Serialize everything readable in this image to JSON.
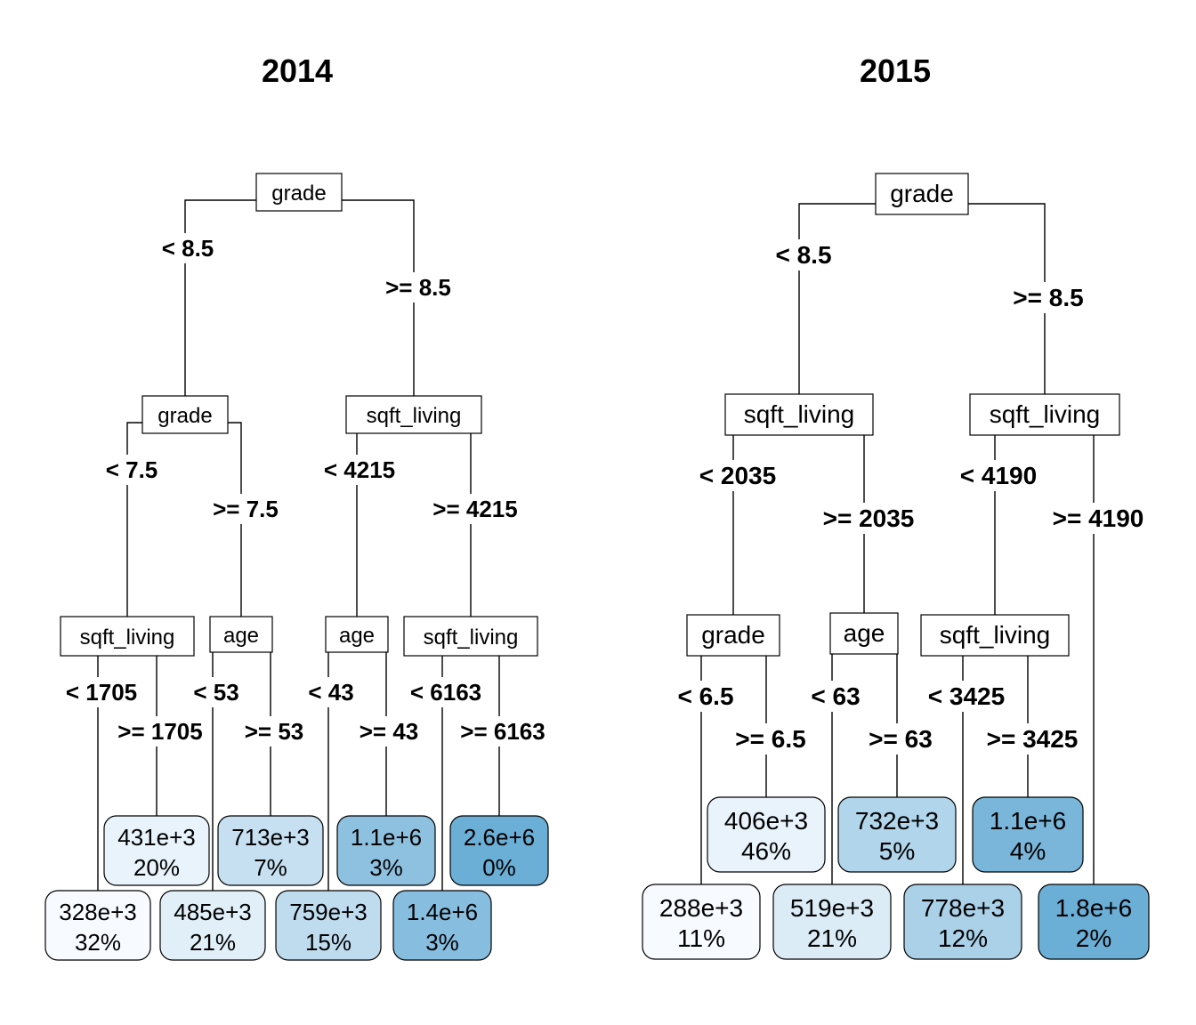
{
  "trees": [
    {
      "id": "t2014",
      "title": "2014",
      "colors": {
        "shade_low": "#f7fbff",
        "shade_high": "#6baed6"
      },
      "nodes": [
        {
          "id": "n1",
          "var": "grade"
        },
        {
          "id": "n2",
          "var": "grade",
          "parent": "n1",
          "edge": "< 8.5"
        },
        {
          "id": "n3",
          "var": "sqft_living",
          "parent": "n1",
          "edge": ">= 8.5"
        },
        {
          "id": "n4",
          "var": "sqft_living",
          "parent": "n2",
          "edge": "< 7.5"
        },
        {
          "id": "n5",
          "var": "age",
          "parent": "n2",
          "edge": ">= 7.5"
        },
        {
          "id": "n6",
          "var": "age",
          "parent": "n3",
          "edge": "< 4215"
        },
        {
          "id": "n7",
          "var": "sqft_living",
          "parent": "n3",
          "edge": ">= 4215"
        },
        {
          "id": "l1",
          "leaf": true,
          "value": "328e+3",
          "pct": "32%",
          "shade": 0.0,
          "parent": "n4",
          "edge": "< 1705"
        },
        {
          "id": "l2",
          "leaf": true,
          "value": "431e+3",
          "pct": "20%",
          "shade": 0.1,
          "parent": "n4",
          "edge": ">= 1705"
        },
        {
          "id": "l3",
          "leaf": true,
          "value": "485e+3",
          "pct": "21%",
          "shade": 0.16,
          "parent": "n5",
          "edge": "< 53"
        },
        {
          "id": "l4",
          "leaf": true,
          "value": "713e+3",
          "pct": "7%",
          "shade": 0.35,
          "parent": "n5",
          "edge": ">= 53"
        },
        {
          "id": "l5",
          "leaf": true,
          "value": "759e+3",
          "pct": "15%",
          "shade": 0.4,
          "parent": "n6",
          "edge": "< 43"
        },
        {
          "id": "l6",
          "leaf": true,
          "value": "1.1e+6",
          "pct": "3%",
          "shade": 0.75,
          "parent": "n6",
          "edge": ">= 43"
        },
        {
          "id": "l7",
          "leaf": true,
          "value": "1.4e+6",
          "pct": "3%",
          "shade": 0.8,
          "parent": "n7",
          "edge": "< 6163"
        },
        {
          "id": "l8",
          "leaf": true,
          "value": "2.6e+6",
          "pct": "0%",
          "shade": 1.0,
          "parent": "n7",
          "edge": ">= 6163"
        }
      ]
    },
    {
      "id": "t2015",
      "title": "2015",
      "colors": {
        "shade_low": "#f7fbff",
        "shade_high": "#6baed6"
      },
      "nodes": [
        {
          "id": "n1",
          "var": "grade"
        },
        {
          "id": "n2",
          "var": "sqft_living",
          "parent": "n1",
          "edge": "< 8.5"
        },
        {
          "id": "n3",
          "var": "sqft_living",
          "parent": "n1",
          "edge": ">= 8.5"
        },
        {
          "id": "n4",
          "var": "grade",
          "parent": "n2",
          "edge": "< 2035"
        },
        {
          "id": "n5",
          "var": "age",
          "parent": "n2",
          "edge": ">= 2035"
        },
        {
          "id": "n6",
          "var": "sqft_living",
          "parent": "n3",
          "edge": "< 4190"
        },
        {
          "id": "l8",
          "leaf": true,
          "value": "1.8e+6",
          "pct": "2%",
          "shade": 1.0,
          "parent": "n3",
          "edge": ">= 4190"
        },
        {
          "id": "l1",
          "leaf": true,
          "value": "288e+3",
          "pct": "11%",
          "shade": 0.0,
          "parent": "n4",
          "edge": "< 6.5"
        },
        {
          "id": "l2",
          "leaf": true,
          "value": "406e+3",
          "pct": "46%",
          "shade": 0.1,
          "parent": "n4",
          "edge": ">= 6.5"
        },
        {
          "id": "l3",
          "leaf": true,
          "value": "519e+3",
          "pct": "21%",
          "shade": 0.2,
          "parent": "n5",
          "edge": "< 63"
        },
        {
          "id": "l4",
          "leaf": true,
          "value": "732e+3",
          "pct": "5%",
          "shade": 0.5,
          "parent": "n5",
          "edge": ">= 63"
        },
        {
          "id": "l5",
          "leaf": true,
          "value": "778e+3",
          "pct": "12%",
          "shade": 0.55,
          "parent": "n6",
          "edge": "< 3425"
        },
        {
          "id": "l6",
          "leaf": true,
          "value": "1.1e+6",
          "pct": "4%",
          "shade": 0.9,
          "parent": "n6",
          "edge": ">= 3425"
        }
      ]
    }
  ]
}
